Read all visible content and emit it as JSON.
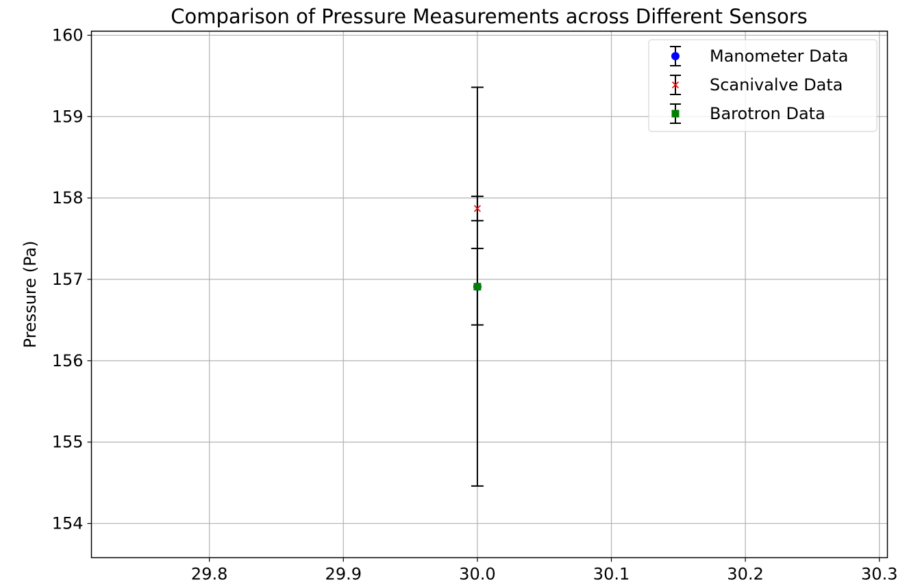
{
  "chart_data": {
    "type": "errorbar",
    "title": "Comparison of Pressure Measurements across Different Sensors",
    "xlabel": "",
    "ylabel": "Pressure (Pa)",
    "xlim": [
      29.712,
      30.306
    ],
    "ylim": [
      153.58,
      160.05
    ],
    "xticks": [
      29.8,
      29.9,
      30.0,
      30.1,
      30.2,
      30.3
    ],
    "xtick_labels": [
      "29.8",
      "29.9",
      "30.0",
      "30.1",
      "30.2",
      "30.3"
    ],
    "yticks": [
      154,
      155,
      156,
      157,
      158,
      159,
      160
    ],
    "ytick_labels": [
      "154",
      "155",
      "156",
      "157",
      "158",
      "159",
      "160"
    ],
    "grid": true,
    "legend_position": "top-right",
    "series": [
      {
        "name": "Manometer Data",
        "marker": "circle",
        "color": "#0000ff",
        "x": 30.0,
        "y": 156.91,
        "yerr": 2.45
      },
      {
        "name": "Scanivalve Data",
        "marker": "x",
        "color": "#ff0000",
        "x": 30.0,
        "y": 157.87,
        "yerr": 0.15
      },
      {
        "name": "Barotron Data",
        "marker": "square",
        "color": "#008000",
        "x": 30.0,
        "y": 156.91,
        "yerr": 0.47
      }
    ],
    "errorbar_color": "#000000"
  }
}
